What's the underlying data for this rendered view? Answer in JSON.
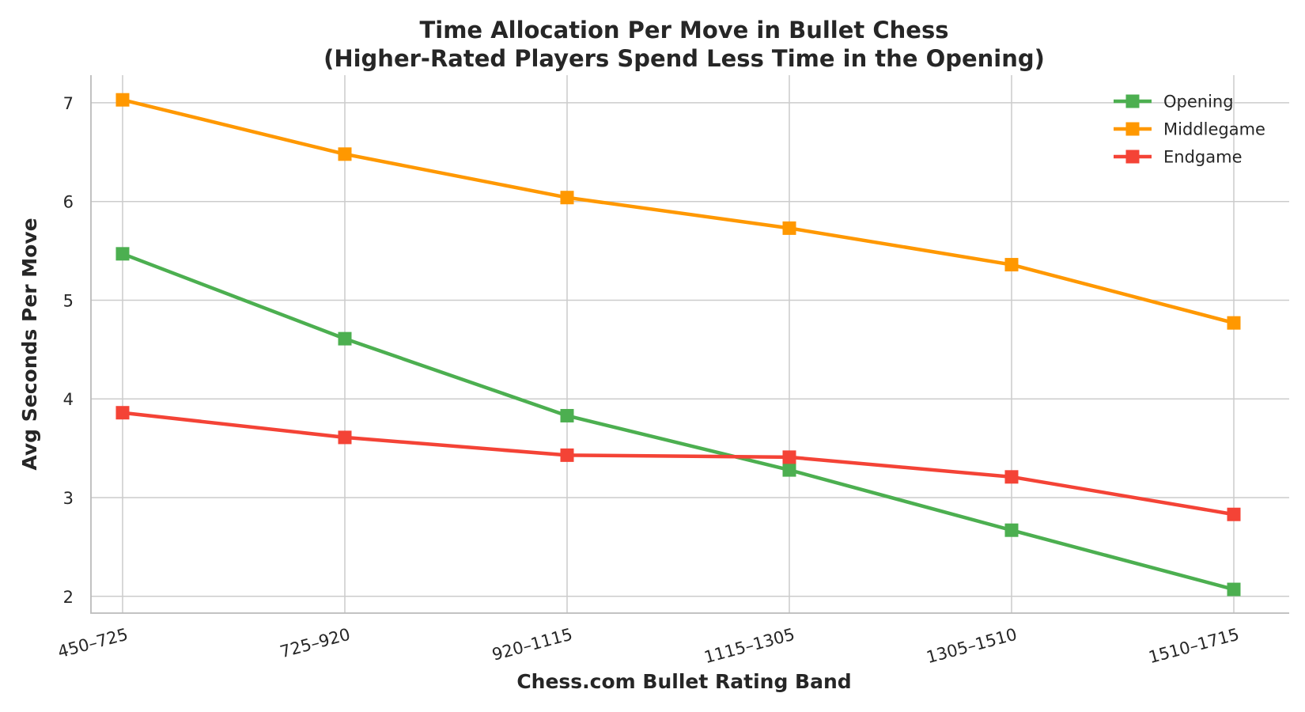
{
  "chart_data": {
    "type": "line",
    "title": "Time Allocation Per Move in Bullet Chess",
    "subtitle": "(Higher-Rated Players Spend Less Time in the Opening)",
    "xlabel": "Chess.com Bullet Rating Band",
    "ylabel": "Avg Seconds Per Move",
    "categories": [
      "450–725",
      "725–920",
      "920–1115",
      "1115–1305",
      "1305–1510",
      "1510–1715"
    ],
    "ylim": [
      1.83,
      7.28
    ],
    "yticks": [
      2,
      3,
      4,
      5,
      6,
      7
    ],
    "grid": true,
    "legend_position": "top-right",
    "marker": "square",
    "series": [
      {
        "name": "Opening",
        "color": "#4caf50",
        "values": [
          5.47,
          4.61,
          3.83,
          3.28,
          2.67,
          2.07
        ]
      },
      {
        "name": "Middlegame",
        "color": "#ff9800",
        "values": [
          7.03,
          6.48,
          6.04,
          5.73,
          5.36,
          4.77
        ]
      },
      {
        "name": "Endgame",
        "color": "#f44336",
        "values": [
          3.86,
          3.61,
          3.43,
          3.41,
          3.21,
          2.83
        ]
      }
    ]
  }
}
